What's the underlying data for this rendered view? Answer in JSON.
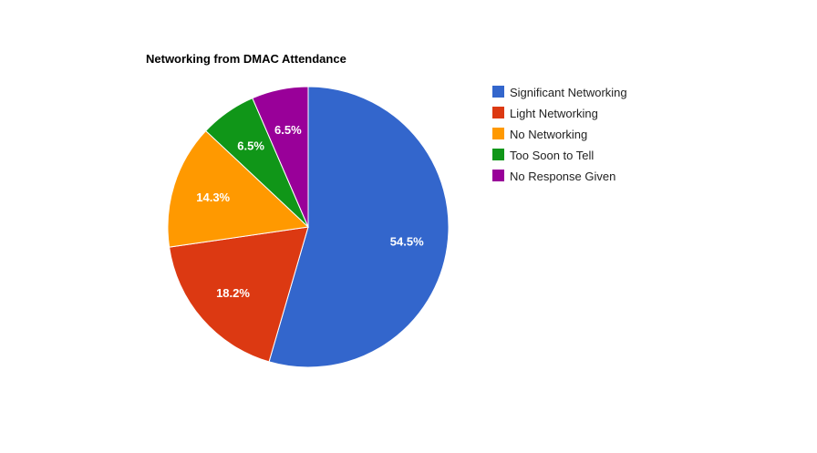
{
  "chart_data": {
    "type": "pie",
    "title": "Networking from DMAC Attendance",
    "categories": [
      "Significant Networking",
      "Light Networking",
      "No Networking",
      "Too Soon to Tell",
      "No Response Given"
    ],
    "values": [
      54.5,
      18.2,
      14.3,
      6.5,
      6.5
    ],
    "labels": [
      "54.5%",
      "18.2%",
      "14.3%",
      "6.5%",
      "6.5%"
    ],
    "colors": [
      "#3366cc",
      "#dc3912",
      "#ff9900",
      "#109618",
      "#990099"
    ],
    "legend_position": "right"
  }
}
